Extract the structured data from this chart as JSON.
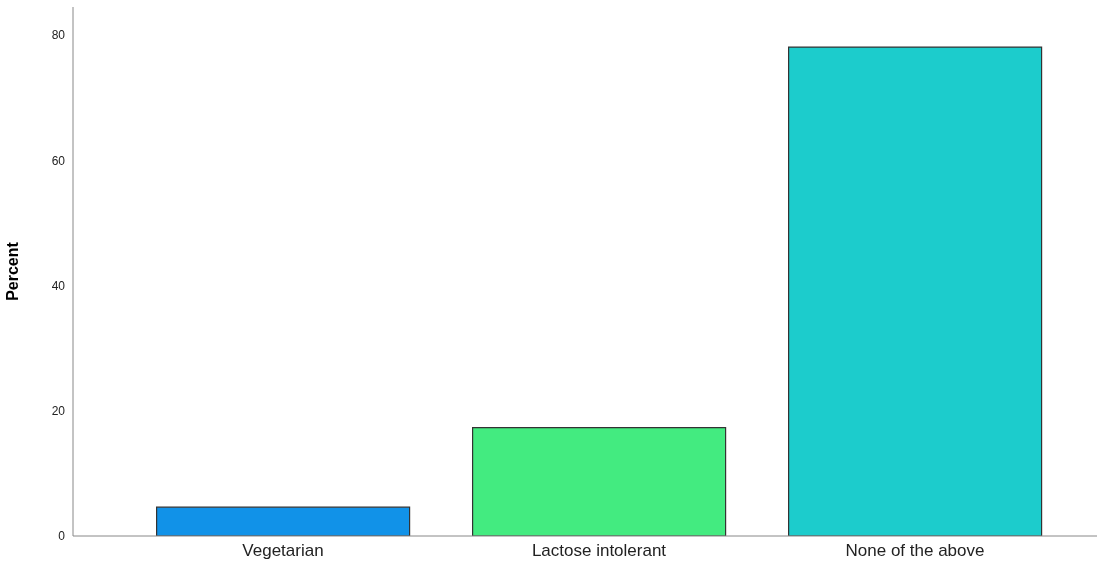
{
  "chart_data": {
    "type": "bar",
    "ylabel": "Percent",
    "categories": [
      "Vegetarian",
      "Lactose intolerant",
      "None of the above"
    ],
    "values": [
      4.6,
      17.3,
      78.1
    ],
    "colors": [
      "#1192e8",
      "#43eb80",
      "#1ccccc"
    ],
    "ylim": [
      0,
      84.5
    ],
    "yticks": [
      0,
      20,
      40,
      60,
      80
    ],
    "grid": false,
    "legend": false
  }
}
